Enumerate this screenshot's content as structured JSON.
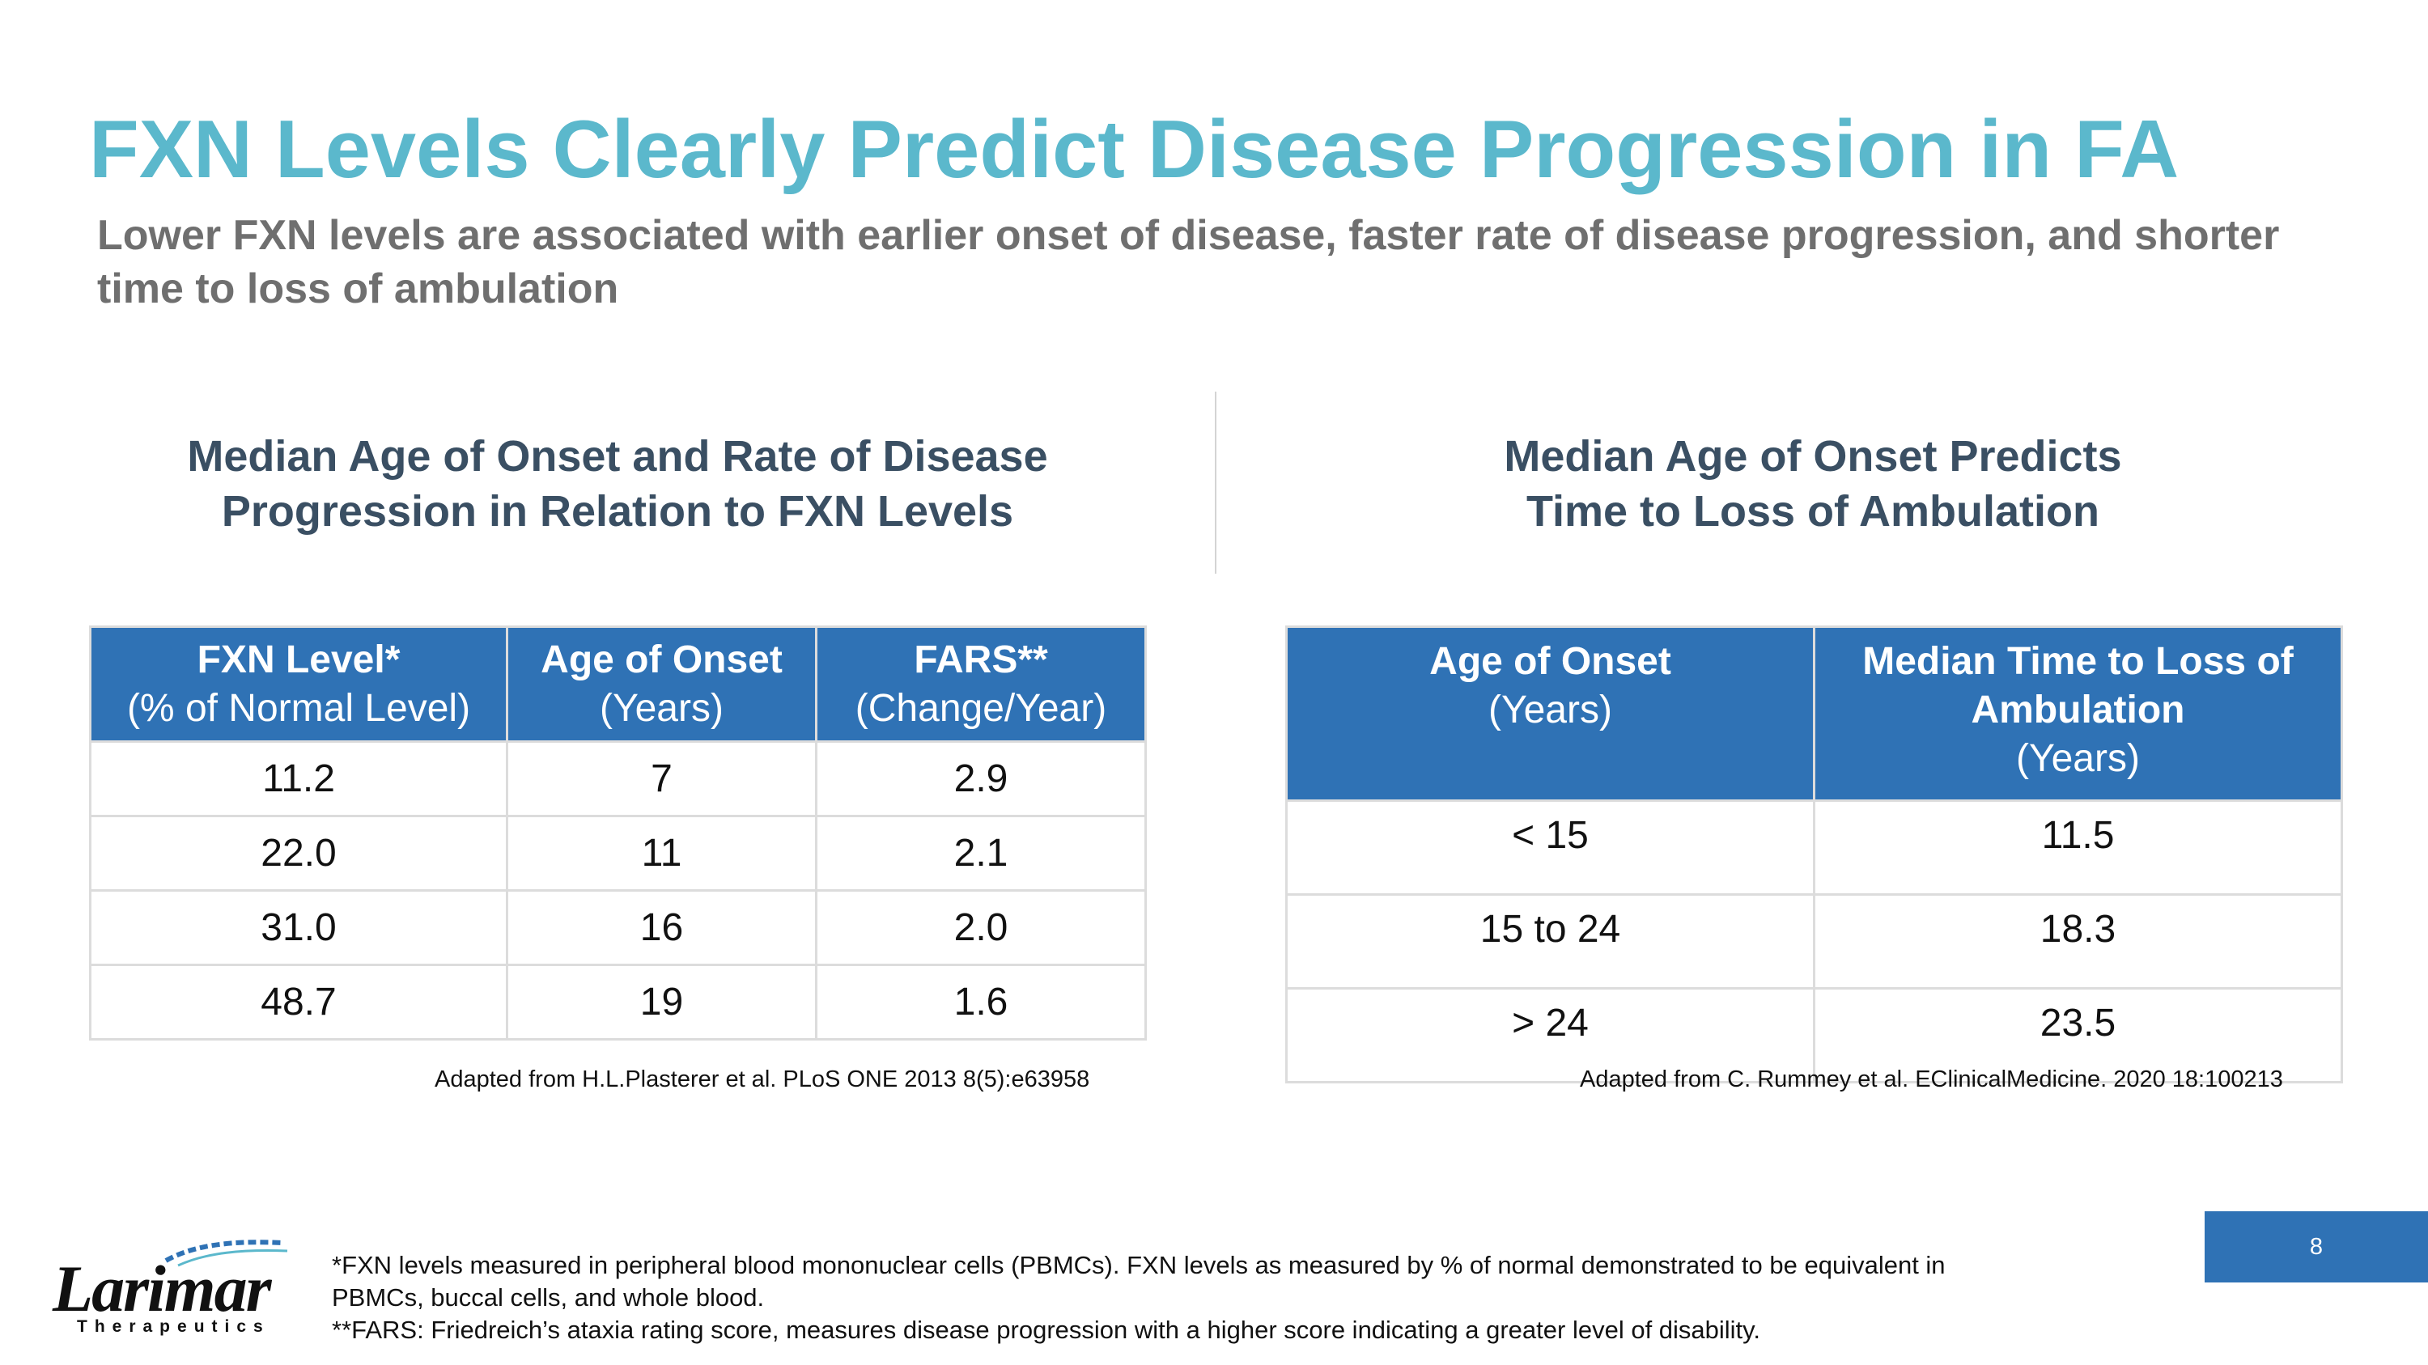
{
  "slide": {
    "title": "FXN Levels Clearly Predict Disease Progression in FA",
    "subtitle": "Lower FXN levels are associated with earlier onset of disease, faster rate of disease progression, and shorter time to loss of ambulation",
    "page_number": "8"
  },
  "left_panel": {
    "heading_line1": "Median Age of Onset and Rate of Disease",
    "heading_line2": "Progression in Relation to FXN Levels",
    "columns": [
      {
        "main": "FXN Level*",
        "sub": "(% of Normal Level)"
      },
      {
        "main": "Age of Onset",
        "sub": "(Years)"
      },
      {
        "main": "FARS**",
        "sub": "(Change/Year)"
      }
    ],
    "rows": [
      [
        "11.2",
        "7",
        "2.9"
      ],
      [
        "22.0",
        "11",
        "2.1"
      ],
      [
        "31.0",
        "16",
        "2.0"
      ],
      [
        "48.7",
        "19",
        "1.6"
      ]
    ],
    "source": "Adapted from H.L.Plasterer et al. PLoS ONE 2013 8(5):e63958"
  },
  "right_panel": {
    "heading_line1": "Median Age of Onset Predicts",
    "heading_line2": "Time to Loss of Ambulation",
    "columns": [
      {
        "main": "Age of Onset",
        "sub": "(Years)"
      },
      {
        "main": "Median Time to Loss of Ambulation",
        "sub": "(Years)"
      }
    ],
    "rows": [
      [
        "< 15",
        "11.5"
      ],
      [
        "15 to 24",
        "18.3"
      ],
      [
        "> 24",
        "23.5"
      ]
    ],
    "source": "Adapted from C. Rummey et al. EClinicalMedicine. 2020 18:100213"
  },
  "logo": {
    "name": "Larimar",
    "tagline": "Therapeutics"
  },
  "footnotes": {
    "note1": "*FXN levels measured in peripheral blood mononuclear cells (PBMCs). FXN levels as measured by % of normal demonstrated to be equivalent in PBMCs, buccal cells, and whole blood.",
    "note2": "**FARS: Friedreich’s ataxia rating score, measures disease progression with a higher score indicating a greater level of disability."
  },
  "colors": {
    "title": "#5bb8cc",
    "header_fill": "#2f72b5",
    "heading_text": "#3a4f63"
  }
}
